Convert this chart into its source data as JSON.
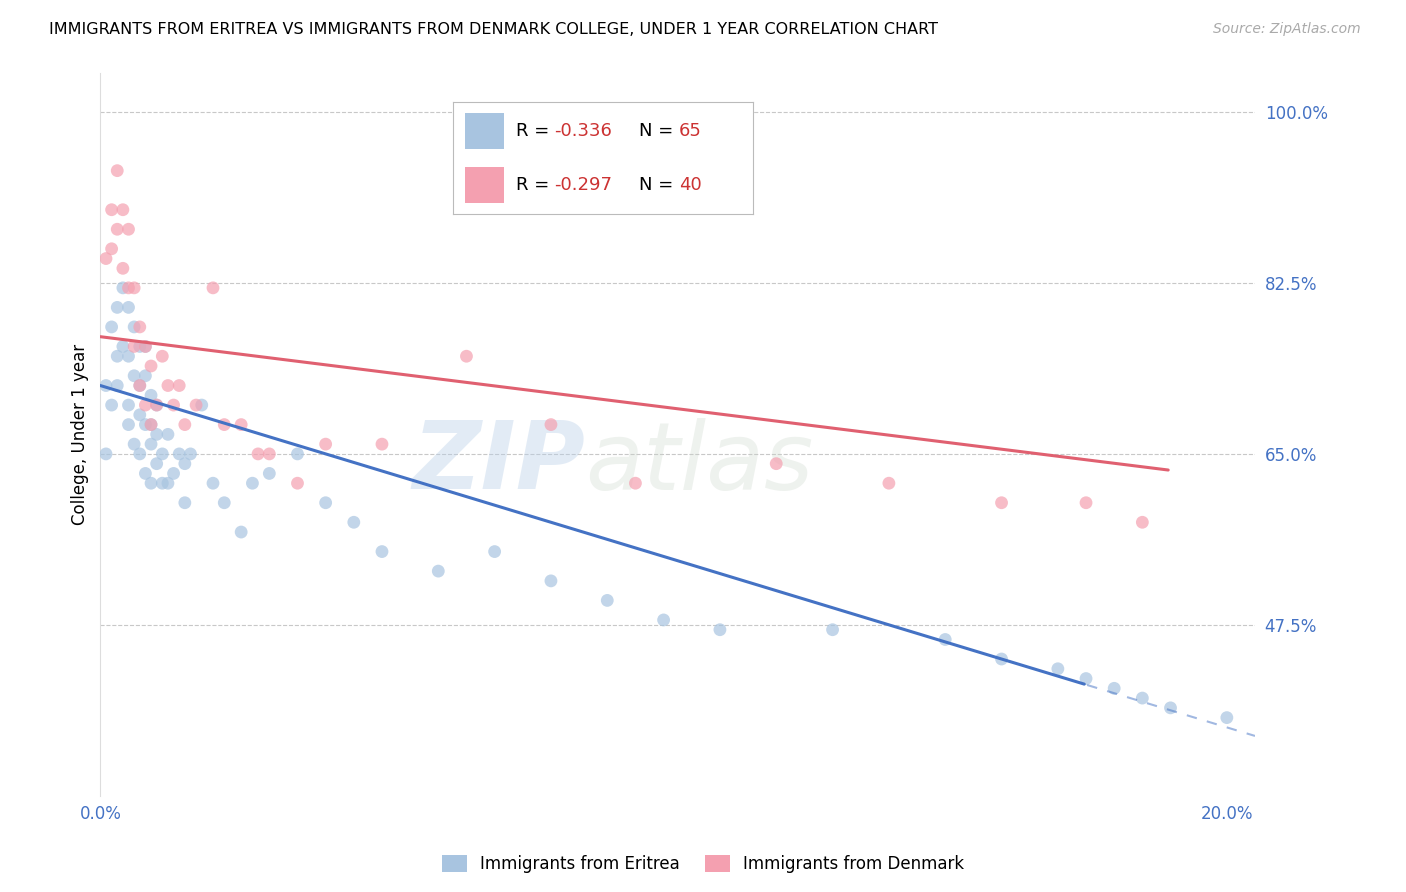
{
  "title": "IMMIGRANTS FROM ERITREA VS IMMIGRANTS FROM DENMARK COLLEGE, UNDER 1 YEAR CORRELATION CHART",
  "source": "Source: ZipAtlas.com",
  "ylabel": "College, Under 1 year",
  "xlim": [
    0.0,
    0.205
  ],
  "ylim": [
    0.3,
    1.04
  ],
  "xticks": [
    0.0,
    0.05,
    0.1,
    0.15,
    0.2
  ],
  "xticklabels": [
    "0.0%",
    "",
    "",
    "",
    "20.0%"
  ],
  "yticks_right": [
    1.0,
    0.825,
    0.65,
    0.475
  ],
  "yticks_right_labels": [
    "100.0%",
    "82.5%",
    "65.0%",
    "47.5%"
  ],
  "grid_color": "#c8c8c8",
  "background_color": "#ffffff",
  "eritrea_color": "#a8c4e0",
  "denmark_color": "#f4a0b0",
  "eritrea_line_color": "#4472c4",
  "denmark_line_color": "#e06070",
  "scatter_alpha": 0.7,
  "scatter_size": 85,
  "eritrea_line_intercept": 0.72,
  "eritrea_line_slope": -1.75,
  "eritrea_line_solid_end": 0.175,
  "denmark_line_intercept": 0.77,
  "denmark_line_slope": -0.72,
  "denmark_line_solid_end": 0.19,
  "eritrea_x": [
    0.001,
    0.001,
    0.002,
    0.002,
    0.003,
    0.003,
    0.003,
    0.004,
    0.004,
    0.005,
    0.005,
    0.005,
    0.005,
    0.006,
    0.006,
    0.006,
    0.007,
    0.007,
    0.007,
    0.007,
    0.008,
    0.008,
    0.008,
    0.008,
    0.009,
    0.009,
    0.009,
    0.009,
    0.01,
    0.01,
    0.01,
    0.011,
    0.011,
    0.012,
    0.012,
    0.013,
    0.014,
    0.015,
    0.015,
    0.016,
    0.018,
    0.02,
    0.022,
    0.025,
    0.027,
    0.03,
    0.035,
    0.04,
    0.045,
    0.05,
    0.06,
    0.07,
    0.08,
    0.09,
    0.1,
    0.11,
    0.13,
    0.15,
    0.16,
    0.17,
    0.175,
    0.18,
    0.185,
    0.19,
    0.2
  ],
  "eritrea_y": [
    0.72,
    0.65,
    0.78,
    0.7,
    0.8,
    0.75,
    0.72,
    0.76,
    0.82,
    0.7,
    0.75,
    0.8,
    0.68,
    0.73,
    0.78,
    0.66,
    0.72,
    0.76,
    0.69,
    0.65,
    0.68,
    0.73,
    0.76,
    0.63,
    0.66,
    0.71,
    0.68,
    0.62,
    0.64,
    0.7,
    0.67,
    0.65,
    0.62,
    0.62,
    0.67,
    0.63,
    0.65,
    0.64,
    0.6,
    0.65,
    0.7,
    0.62,
    0.6,
    0.57,
    0.62,
    0.63,
    0.65,
    0.6,
    0.58,
    0.55,
    0.53,
    0.55,
    0.52,
    0.5,
    0.48,
    0.47,
    0.47,
    0.46,
    0.44,
    0.43,
    0.42,
    0.41,
    0.4,
    0.39,
    0.38
  ],
  "denmark_x": [
    0.001,
    0.002,
    0.002,
    0.003,
    0.003,
    0.004,
    0.004,
    0.005,
    0.005,
    0.006,
    0.006,
    0.007,
    0.007,
    0.008,
    0.008,
    0.009,
    0.009,
    0.01,
    0.011,
    0.012,
    0.013,
    0.014,
    0.015,
    0.017,
    0.02,
    0.022,
    0.025,
    0.028,
    0.03,
    0.035,
    0.04,
    0.05,
    0.065,
    0.08,
    0.095,
    0.12,
    0.14,
    0.16,
    0.175,
    0.185
  ],
  "denmark_y": [
    0.85,
    0.9,
    0.86,
    0.88,
    0.94,
    0.84,
    0.9,
    0.82,
    0.88,
    0.76,
    0.82,
    0.72,
    0.78,
    0.7,
    0.76,
    0.68,
    0.74,
    0.7,
    0.75,
    0.72,
    0.7,
    0.72,
    0.68,
    0.7,
    0.82,
    0.68,
    0.68,
    0.65,
    0.65,
    0.62,
    0.66,
    0.66,
    0.75,
    0.68,
    0.62,
    0.64,
    0.62,
    0.6,
    0.6,
    0.58
  ]
}
